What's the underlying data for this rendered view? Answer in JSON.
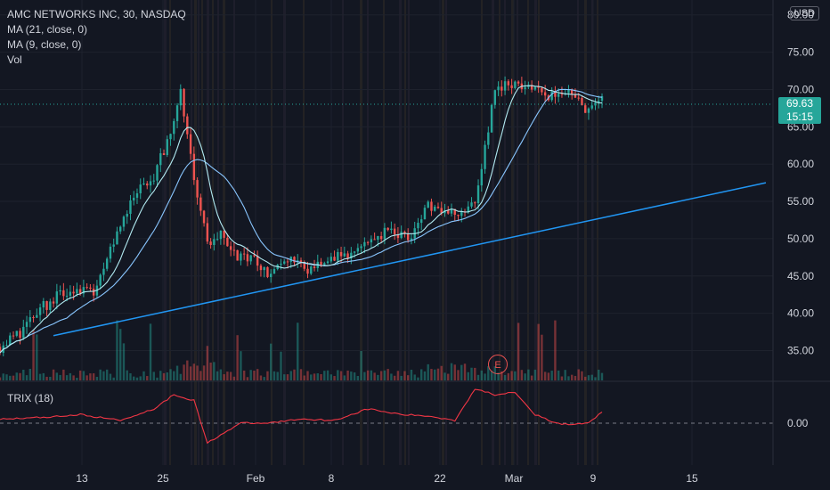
{
  "header": {
    "symbol_title": "AMC NETWORKS INC, 30, NASDAQ",
    "indicators": [
      "MA (21, close, 0)",
      "MA (9, close, 0)",
      "Vol"
    ],
    "currency": "USD"
  },
  "trix": {
    "label": "TRIX (18)",
    "axis_label": "0.00"
  },
  "last_price": {
    "value": "69.63",
    "countdown": "15:15"
  },
  "earnings_marker": {
    "letter": "E"
  },
  "colors": {
    "up": "#26a69a",
    "down": "#ef5350",
    "trendline": "#2196f3",
    "ma": "#89c6ff",
    "trix": "#f23645"
  },
  "chart_data": {
    "type": "line",
    "title": "AMC NETWORKS INC, 30, NASDAQ",
    "ylim": [
      31,
      82
    ],
    "y_ticks": [
      "35.00",
      "40.00",
      "45.00",
      "50.00",
      "55.00",
      "60.00",
      "65.00",
      "70.00",
      "75.00",
      "80.00"
    ],
    "x_tick_labels": [
      "13",
      "25",
      "Feb",
      "8",
      "22",
      "Mar",
      "9",
      "15"
    ],
    "price_path": {
      "x_index": [
        0,
        6,
        12,
        18,
        23,
        28,
        34,
        40,
        46,
        52,
        54,
        58,
        62,
        66,
        70,
        76,
        80,
        86,
        92,
        98,
        104,
        110,
        116,
        122,
        128,
        134,
        138,
        142,
        148,
        152,
        158,
        164,
        170,
        176,
        180
      ],
      "values": [
        35.5,
        37.5,
        40.5,
        42.5,
        43.5,
        43.0,
        50.0,
        56.0,
        58.0,
        66.0,
        70.0,
        58.0,
        49.5,
        50.5,
        48.0,
        47.0,
        45.0,
        47.5,
        46.0,
        47.0,
        48.0,
        50.0,
        51.0,
        50.0,
        54.5,
        53.0,
        54.0,
        55.0,
        70.0,
        71.0,
        70.5,
        69.0,
        70.0,
        67.0,
        69.63
      ]
    },
    "trendline": {
      "start_value": 37.0,
      "end_value": 57.5
    },
    "trix_line": {
      "x_index": [
        0,
        12,
        24,
        36,
        46,
        52,
        58,
        62,
        66,
        72,
        80,
        90,
        100,
        110,
        120,
        128,
        136,
        142,
        148,
        154,
        160,
        166,
        170,
        176,
        180
      ],
      "values": [
        0.15,
        0.2,
        0.3,
        0.1,
        0.5,
        1.0,
        0.8,
        -0.7,
        -0.4,
        0.0,
        0.0,
        0.15,
        0.1,
        0.5,
        0.3,
        0.25,
        0.1,
        1.2,
        1.0,
        1.1,
        0.3,
        0.0,
        -0.05,
        0.0,
        0.4
      ]
    }
  }
}
